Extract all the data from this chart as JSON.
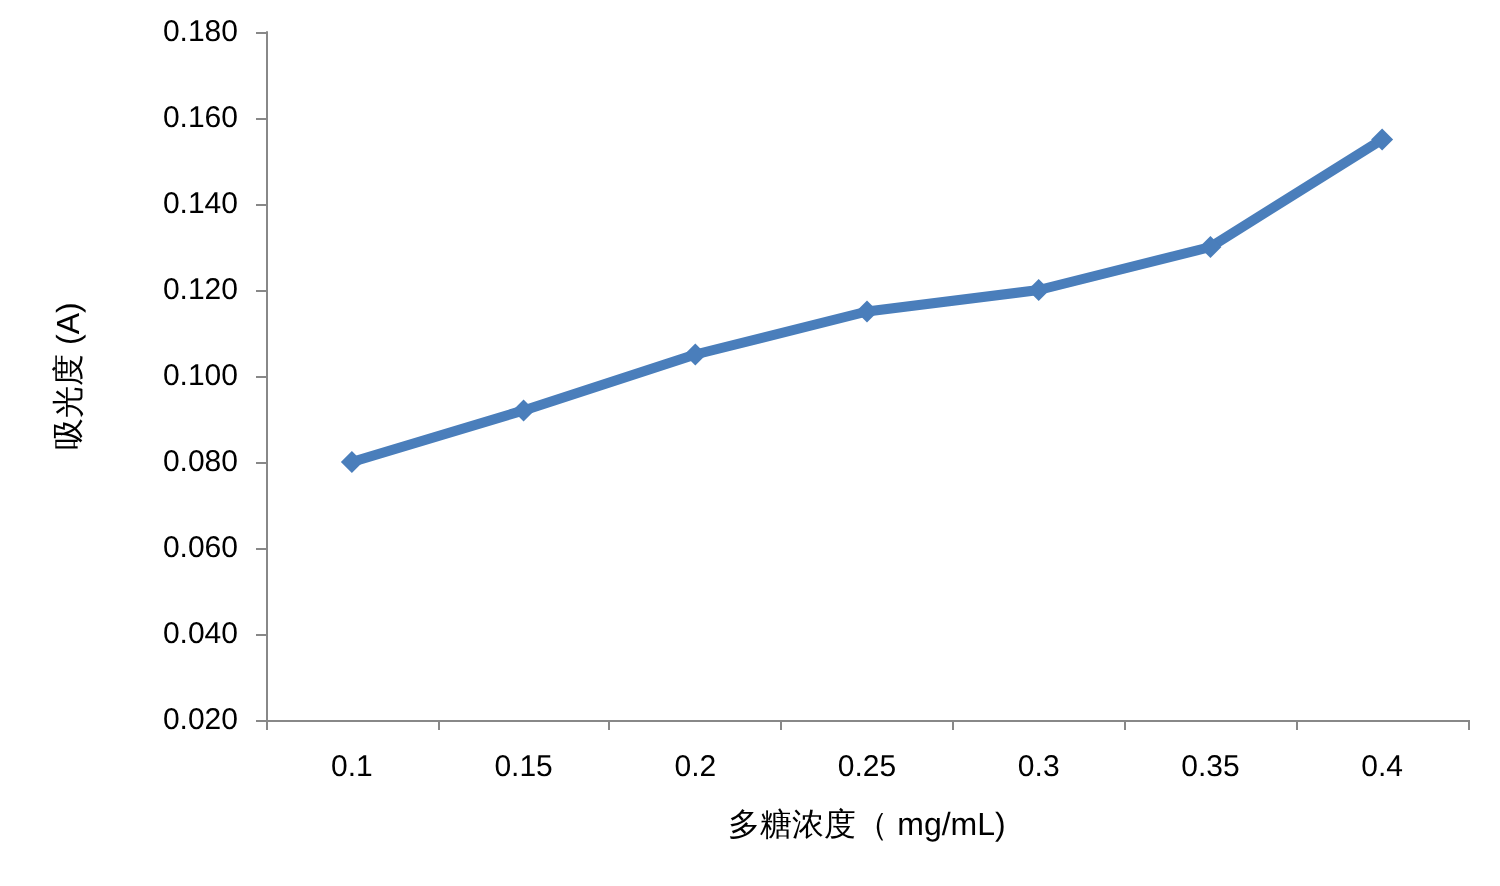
{
  "chart_data": {
    "type": "line",
    "xlabel": "多糖浓度（ mg/mL)",
    "ylabel": "吸光度 (A)",
    "categories": [
      "0.1",
      "0.15",
      "0.2",
      "0.25",
      "0.3",
      "0.35",
      "0.4"
    ],
    "series": [
      {
        "color": "#4a7ebb",
        "values": [
          0.08,
          0.092,
          0.105,
          0.115,
          0.12,
          0.13,
          0.155
        ]
      }
    ],
    "ylim": [
      0.02,
      0.18
    ],
    "yticks": [
      {
        "value": 0.02,
        "label": "0.020"
      },
      {
        "value": 0.04,
        "label": "0.040"
      },
      {
        "value": 0.06,
        "label": "0.060"
      },
      {
        "value": 0.08,
        "label": "0.080"
      },
      {
        "value": 0.1,
        "label": "0.100"
      },
      {
        "value": 0.12,
        "label": "0.120"
      },
      {
        "value": 0.14,
        "label": "0.140"
      },
      {
        "value": 0.16,
        "label": "0.160"
      },
      {
        "value": 0.18,
        "label": "0.180"
      }
    ],
    "grid": false,
    "marker": "diamond",
    "line_style": "solid"
  }
}
